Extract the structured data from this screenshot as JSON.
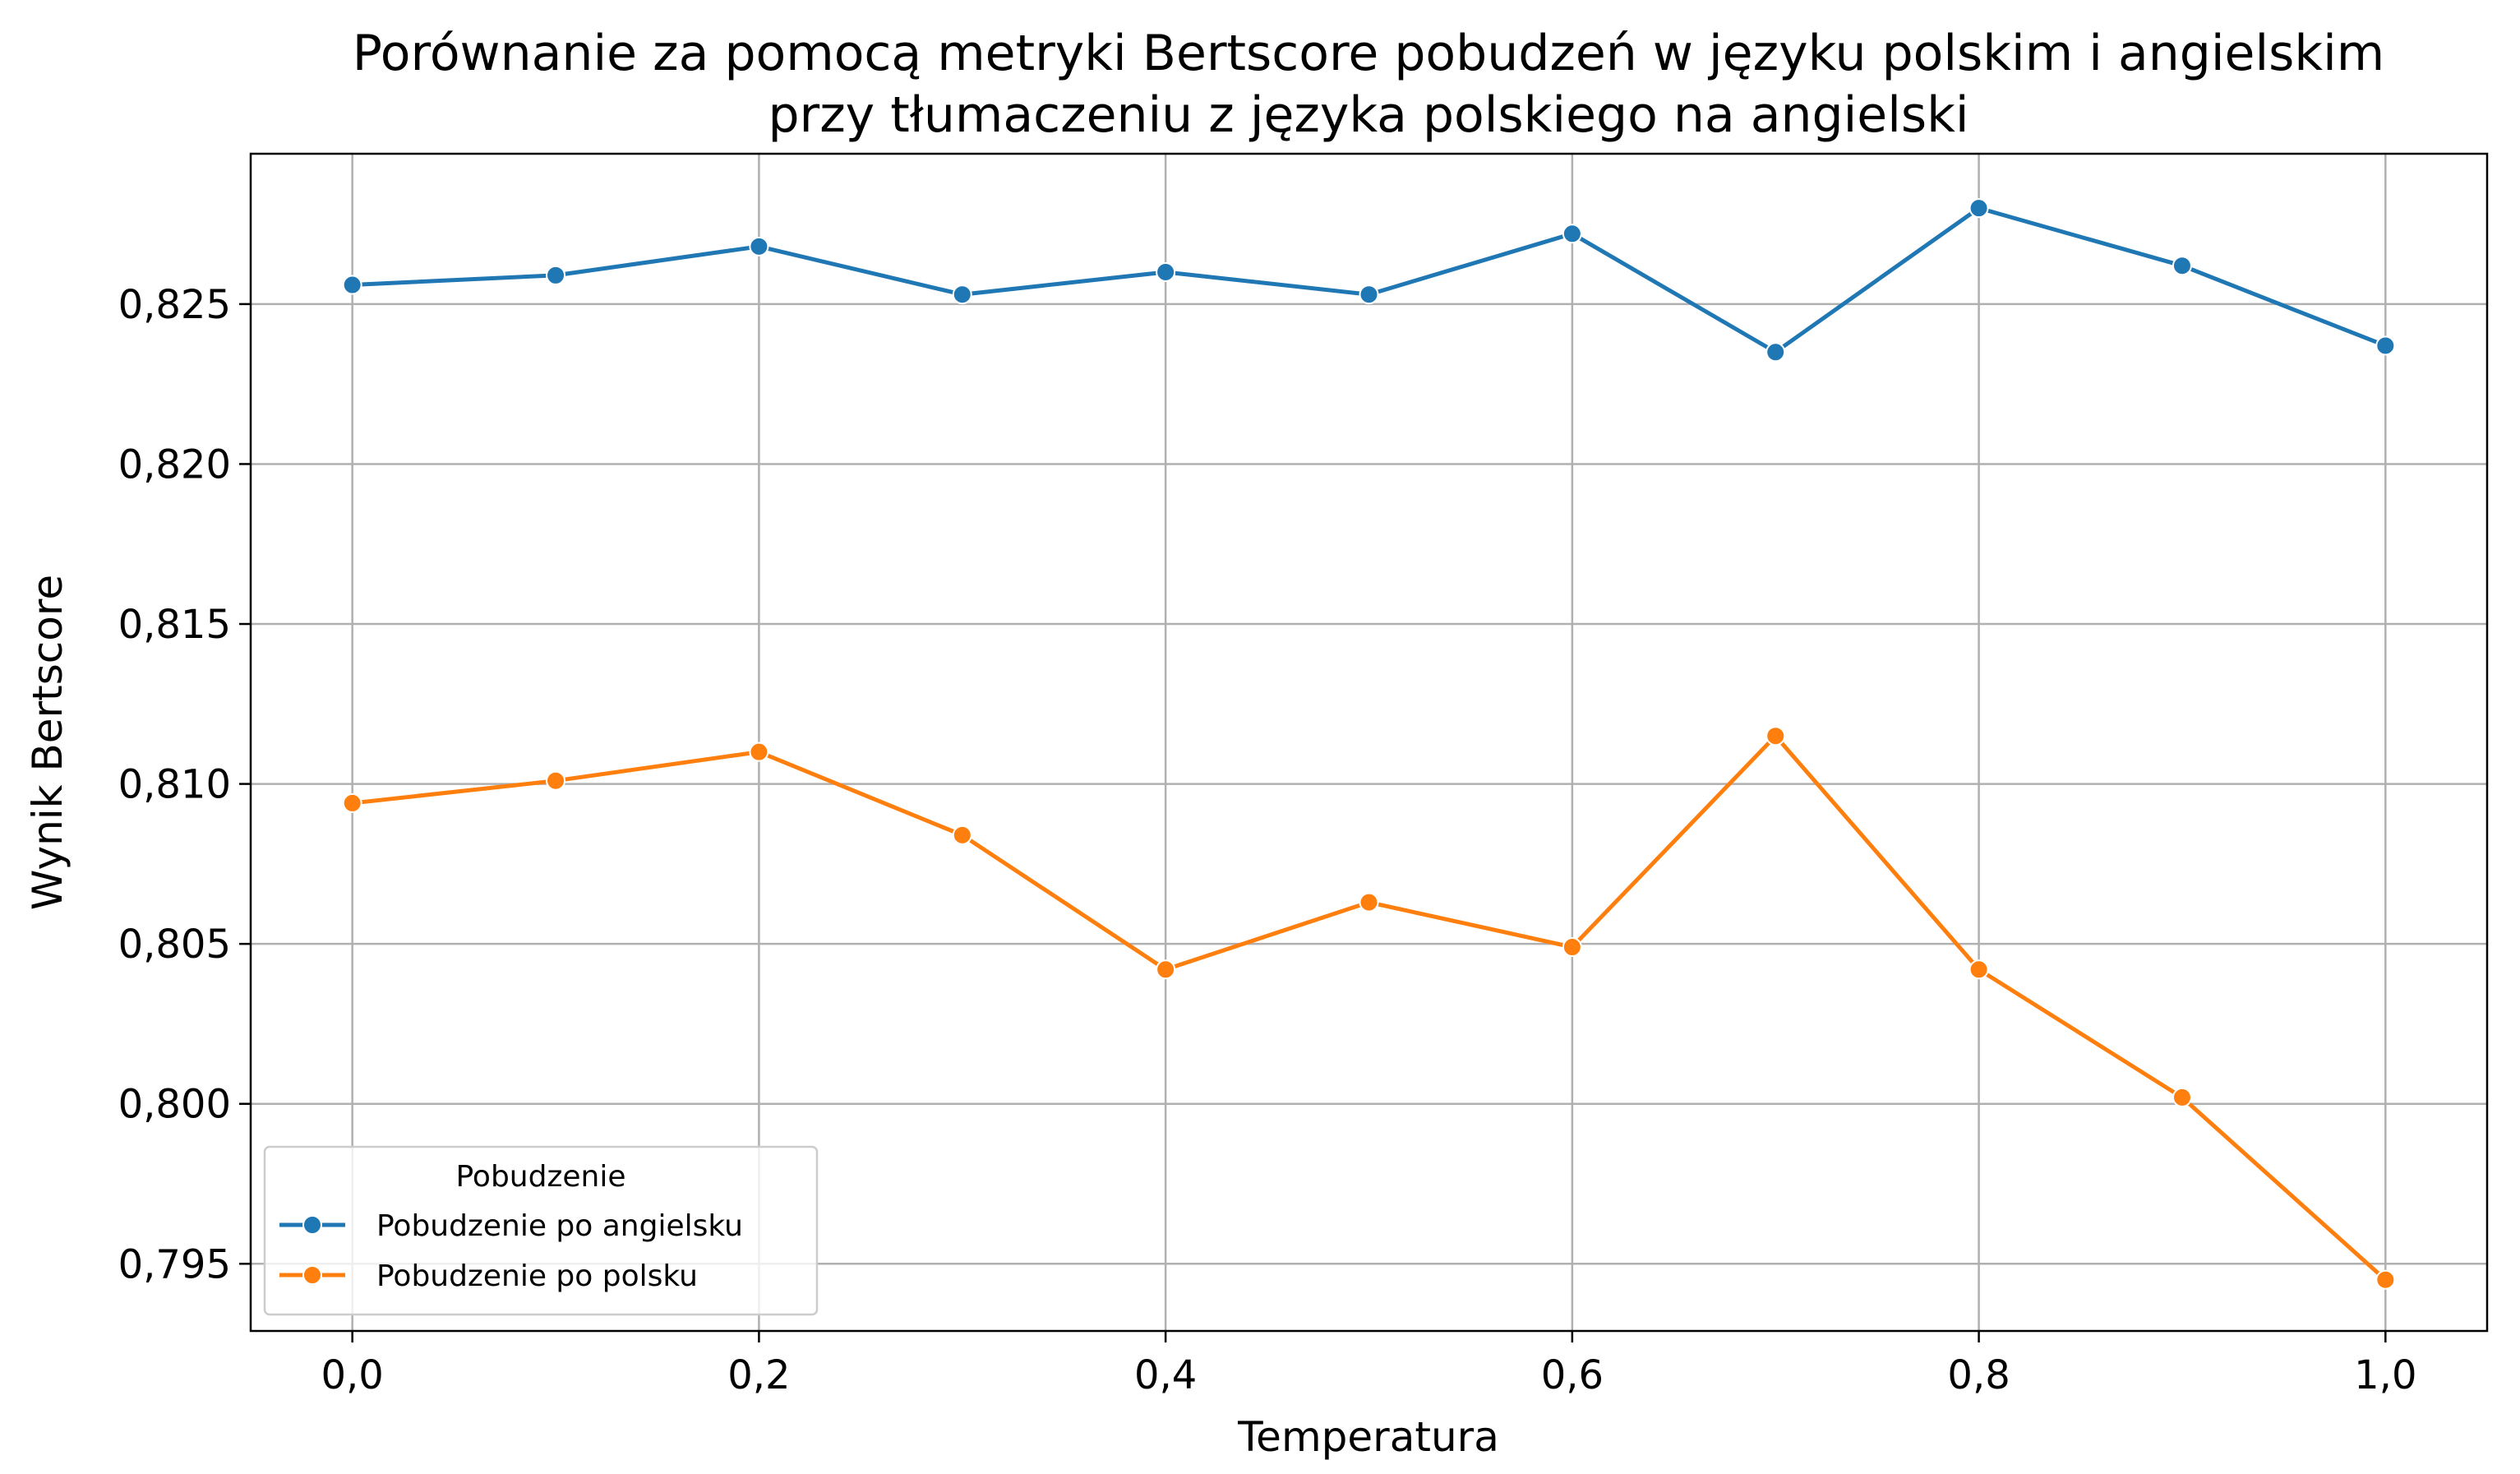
{
  "chart_data": {
    "type": "line",
    "title": "Porównanie za pomocą metryki Bertscore pobudzeń w języku polskim i angielskim",
    "subtitle": "przy tłumaczeniu z języka polskiego na angielski",
    "xlabel": "Temperatura",
    "ylabel": "Wynik Bertscore",
    "x": [
      0.0,
      0.1,
      0.2,
      0.3,
      0.4,
      0.5,
      0.6,
      0.7,
      0.8,
      0.9,
      1.0
    ],
    "xlim": [
      -0.05,
      1.05
    ],
    "ylim": [
      0.7929,
      0.8297
    ],
    "x_ticks": [
      0.0,
      0.2,
      0.4,
      0.6,
      0.8,
      1.0
    ],
    "x_tick_labels": [
      "0,0",
      "0,2",
      "0,4",
      "0,6",
      "0,8",
      "1,0"
    ],
    "y_ticks": [
      0.795,
      0.8,
      0.805,
      0.81,
      0.815,
      0.82,
      0.825
    ],
    "y_tick_labels": [
      "0,795",
      "0,800",
      "0,805",
      "0,810",
      "0,815",
      "0,820",
      "0,825"
    ],
    "grid": true,
    "legend": {
      "title": "Pobudzenie",
      "placement": "lower-left"
    },
    "series": [
      {
        "name": "Pobudzenie po angielsku",
        "color": "#1f77b4",
        "values": [
          0.8256,
          0.8259,
          0.8268,
          0.8253,
          0.826,
          0.8253,
          0.8272,
          0.8235,
          0.828,
          0.8262,
          0.8237
        ]
      },
      {
        "name": "Pobudzenie po polsku",
        "color": "#ff7f0e",
        "values": [
          0.8094,
          0.8101,
          0.811,
          0.8084,
          0.8042,
          0.8063,
          0.8049,
          0.8115,
          0.8042,
          0.8002,
          0.7945
        ]
      }
    ]
  }
}
